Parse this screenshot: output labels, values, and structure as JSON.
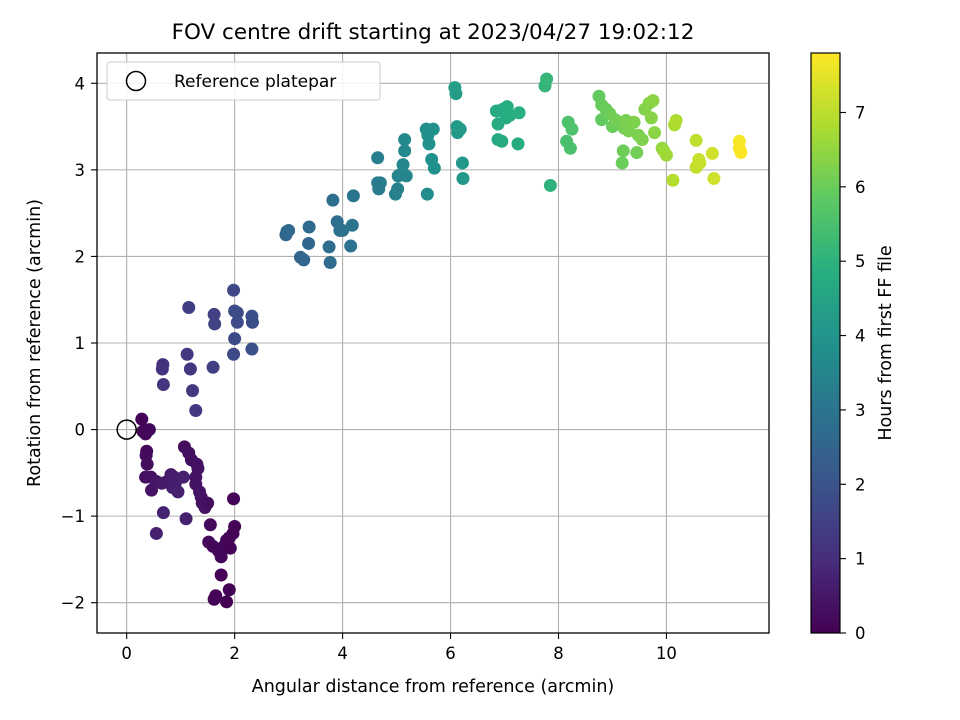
{
  "chart_data": {
    "type": "scatter",
    "title": "FOV centre drift starting at 2023/04/27 19:02:12",
    "xlabel": "Angular distance from reference (arcmin)",
    "ylabel": "Rotation from reference (arcmin)",
    "xlim": [
      -0.55,
      11.9
    ],
    "ylim": [
      -2.35,
      4.35
    ],
    "xticks": [
      0,
      2,
      4,
      6,
      8,
      10
    ],
    "yticks": [
      -2,
      -1,
      0,
      1,
      2,
      3,
      4
    ],
    "grid": true,
    "legend": {
      "position": "top-left",
      "label": "Reference platepar"
    },
    "reference_point": {
      "x": 0,
      "y": 0
    },
    "colorbar": {
      "label": "Hours from first FF file",
      "colormap": "viridis",
      "range": [
        0,
        7.8
      ],
      "ticks": [
        0,
        1,
        2,
        3,
        4,
        5,
        6,
        7
      ]
    },
    "points": [
      {
        "x": 0.28,
        "y": 0.12,
        "c": 0.05
      },
      {
        "x": 0.3,
        "y": -0.02,
        "c": 0.08
      },
      {
        "x": 0.42,
        "y": 0.0,
        "c": 0.1
      },
      {
        "x": 0.35,
        "y": -0.05,
        "c": 0.12
      },
      {
        "x": 0.37,
        "y": -0.25,
        "c": 0.15
      },
      {
        "x": 0.36,
        "y": -0.3,
        "c": 0.2
      },
      {
        "x": 0.38,
        "y": -0.4,
        "c": 0.25
      },
      {
        "x": 0.35,
        "y": -0.55,
        "c": 0.3
      },
      {
        "x": 0.45,
        "y": -0.55,
        "c": 0.35
      },
      {
        "x": 0.46,
        "y": -0.7,
        "c": 0.4
      },
      {
        "x": 0.55,
        "y": -0.6,
        "c": 0.45
      },
      {
        "x": 0.65,
        "y": -0.62,
        "c": 0.5
      },
      {
        "x": 0.75,
        "y": -0.6,
        "c": 0.5
      },
      {
        "x": 0.82,
        "y": -0.52,
        "c": 0.55
      },
      {
        "x": 0.88,
        "y": -0.55,
        "c": 0.6
      },
      {
        "x": 0.9,
        "y": -0.62,
        "c": 0.6
      },
      {
        "x": 0.85,
        "y": -0.67,
        "c": 0.65
      },
      {
        "x": 0.95,
        "y": -0.72,
        "c": 0.7
      },
      {
        "x": 1.05,
        "y": -0.55,
        "c": 0.7
      },
      {
        "x": 1.07,
        "y": -0.2,
        "c": 0.25
      },
      {
        "x": 1.15,
        "y": -0.27,
        "c": 0.3
      },
      {
        "x": 1.2,
        "y": -0.35,
        "c": 0.3
      },
      {
        "x": 1.3,
        "y": -0.4,
        "c": 0.35
      },
      {
        "x": 1.32,
        "y": -0.45,
        "c": 0.35
      },
      {
        "x": 1.28,
        "y": -0.55,
        "c": 0.4
      },
      {
        "x": 1.28,
        "y": -0.63,
        "c": 0.4
      },
      {
        "x": 1.35,
        "y": -0.72,
        "c": 0.4
      },
      {
        "x": 1.38,
        "y": -0.78,
        "c": 0.4
      },
      {
        "x": 1.4,
        "y": -0.85,
        "c": 0.35
      },
      {
        "x": 1.45,
        "y": -0.9,
        "c": 0.35
      },
      {
        "x": 1.5,
        "y": -0.85,
        "c": 0.3
      },
      {
        "x": 1.1,
        "y": -1.03,
        "c": 0.7
      },
      {
        "x": 0.68,
        "y": -0.96,
        "c": 0.75
      },
      {
        "x": 0.55,
        "y": -1.2,
        "c": 0.7
      },
      {
        "x": 1.55,
        "y": -1.1,
        "c": 0.2
      },
      {
        "x": 1.52,
        "y": -1.3,
        "c": 0.2
      },
      {
        "x": 1.6,
        "y": -1.35,
        "c": 0.15
      },
      {
        "x": 1.7,
        "y": -1.4,
        "c": 0.15
      },
      {
        "x": 1.75,
        "y": -1.47,
        "c": 0.1
      },
      {
        "x": 1.8,
        "y": -1.35,
        "c": 0.1
      },
      {
        "x": 1.85,
        "y": -1.28,
        "c": 0.1
      },
      {
        "x": 1.9,
        "y": -1.25,
        "c": 0.1
      },
      {
        "x": 1.92,
        "y": -1.37,
        "c": 0.08
      },
      {
        "x": 1.97,
        "y": -1.2,
        "c": 0.08
      },
      {
        "x": 2.0,
        "y": -1.12,
        "c": 0.08
      },
      {
        "x": 1.98,
        "y": -0.8,
        "c": 0.05
      },
      {
        "x": 1.75,
        "y": -1.68,
        "c": 0.05
      },
      {
        "x": 1.65,
        "y": -1.92,
        "c": 0.05
      },
      {
        "x": 1.62,
        "y": -1.96,
        "c": 0.05
      },
      {
        "x": 1.85,
        "y": -1.99,
        "c": 0.03
      },
      {
        "x": 1.9,
        "y": -1.85,
        "c": 0.03
      },
      {
        "x": 0.67,
        "y": 0.75,
        "c": 1.1
      },
      {
        "x": 0.66,
        "y": 0.7,
        "c": 1.1
      },
      {
        "x": 0.68,
        "y": 0.52,
        "c": 1.15
      },
      {
        "x": 1.12,
        "y": 0.87,
        "c": 1.2
      },
      {
        "x": 1.18,
        "y": 0.7,
        "c": 1.25
      },
      {
        "x": 1.22,
        "y": 0.45,
        "c": 1.3
      },
      {
        "x": 1.28,
        "y": 0.22,
        "c": 1.3
      },
      {
        "x": 1.15,
        "y": 1.41,
        "c": 1.45
      },
      {
        "x": 1.62,
        "y": 1.33,
        "c": 1.5
      },
      {
        "x": 1.63,
        "y": 1.22,
        "c": 1.55
      },
      {
        "x": 1.6,
        "y": 0.72,
        "c": 1.5
      },
      {
        "x": 1.98,
        "y": 1.61,
        "c": 1.65
      },
      {
        "x": 2.0,
        "y": 1.37,
        "c": 1.7
      },
      {
        "x": 2.05,
        "y": 1.35,
        "c": 1.75
      },
      {
        "x": 2.05,
        "y": 1.24,
        "c": 1.8
      },
      {
        "x": 2.0,
        "y": 1.05,
        "c": 1.75
      },
      {
        "x": 1.98,
        "y": 0.87,
        "c": 1.7
      },
      {
        "x": 2.32,
        "y": 1.31,
        "c": 1.85
      },
      {
        "x": 2.33,
        "y": 1.24,
        "c": 1.85
      },
      {
        "x": 2.32,
        "y": 0.93,
        "c": 1.9
      },
      {
        "x": 2.95,
        "y": 2.25,
        "c": 2.6
      },
      {
        "x": 2.97,
        "y": 2.29,
        "c": 2.6
      },
      {
        "x": 3.0,
        "y": 2.3,
        "c": 2.65
      },
      {
        "x": 3.22,
        "y": 1.99,
        "c": 2.5
      },
      {
        "x": 3.28,
        "y": 1.96,
        "c": 2.55
      },
      {
        "x": 3.37,
        "y": 2.15,
        "c": 2.6
      },
      {
        "x": 3.38,
        "y": 2.34,
        "c": 2.7
      },
      {
        "x": 3.75,
        "y": 2.11,
        "c": 2.75
      },
      {
        "x": 3.77,
        "y": 1.93,
        "c": 2.75
      },
      {
        "x": 3.82,
        "y": 2.65,
        "c": 2.85
      },
      {
        "x": 3.9,
        "y": 2.4,
        "c": 2.8
      },
      {
        "x": 3.95,
        "y": 2.3,
        "c": 2.85
      },
      {
        "x": 4.0,
        "y": 2.3,
        "c": 2.9
      },
      {
        "x": 4.15,
        "y": 2.12,
        "c": 2.9
      },
      {
        "x": 4.18,
        "y": 2.36,
        "c": 2.95
      },
      {
        "x": 4.2,
        "y": 2.7,
        "c": 3.0
      },
      {
        "x": 4.65,
        "y": 3.14,
        "c": 3.3
      },
      {
        "x": 4.65,
        "y": 2.85,
        "c": 3.2
      },
      {
        "x": 4.67,
        "y": 2.78,
        "c": 3.2
      },
      {
        "x": 4.7,
        "y": 2.85,
        "c": 3.25
      },
      {
        "x": 4.98,
        "y": 2.72,
        "c": 3.35
      },
      {
        "x": 5.02,
        "y": 2.78,
        "c": 3.4
      },
      {
        "x": 5.03,
        "y": 2.93,
        "c": 3.45
      },
      {
        "x": 5.08,
        "y": 2.95,
        "c": 3.5
      },
      {
        "x": 5.12,
        "y": 3.06,
        "c": 3.55
      },
      {
        "x": 5.15,
        "y": 3.22,
        "c": 3.6
      },
      {
        "x": 5.15,
        "y": 3.35,
        "c": 3.65
      },
      {
        "x": 5.18,
        "y": 2.93,
        "c": 3.5
      },
      {
        "x": 5.55,
        "y": 3.47,
        "c": 3.8
      },
      {
        "x": 5.58,
        "y": 3.4,
        "c": 3.85
      },
      {
        "x": 5.6,
        "y": 3.3,
        "c": 3.9
      },
      {
        "x": 5.57,
        "y": 2.72,
        "c": 3.75
      },
      {
        "x": 5.65,
        "y": 3.12,
        "c": 3.9
      },
      {
        "x": 5.68,
        "y": 3.47,
        "c": 3.95
      },
      {
        "x": 5.7,
        "y": 3.02,
        "c": 3.95
      },
      {
        "x": 6.08,
        "y": 3.95,
        "c": 4.3
      },
      {
        "x": 6.1,
        "y": 3.88,
        "c": 4.3
      },
      {
        "x": 6.12,
        "y": 3.5,
        "c": 4.2
      },
      {
        "x": 6.13,
        "y": 3.43,
        "c": 4.2
      },
      {
        "x": 6.18,
        "y": 3.47,
        "c": 4.25
      },
      {
        "x": 6.22,
        "y": 3.08,
        "c": 4.1
      },
      {
        "x": 6.23,
        "y": 2.9,
        "c": 4.1
      },
      {
        "x": 6.85,
        "y": 3.68,
        "c": 4.7
      },
      {
        "x": 6.88,
        "y": 3.53,
        "c": 4.7
      },
      {
        "x": 6.88,
        "y": 3.35,
        "c": 4.65
      },
      {
        "x": 6.95,
        "y": 3.33,
        "c": 4.7
      },
      {
        "x": 6.97,
        "y": 3.7,
        "c": 4.75
      },
      {
        "x": 7.03,
        "y": 3.6,
        "c": 4.8
      },
      {
        "x": 7.05,
        "y": 3.73,
        "c": 4.8
      },
      {
        "x": 7.1,
        "y": 3.63,
        "c": 4.85
      },
      {
        "x": 7.25,
        "y": 3.3,
        "c": 4.8
      },
      {
        "x": 7.27,
        "y": 3.66,
        "c": 4.9
      },
      {
        "x": 7.75,
        "y": 3.97,
        "c": 5.1
      },
      {
        "x": 7.78,
        "y": 4.05,
        "c": 5.15
      },
      {
        "x": 7.85,
        "y": 2.82,
        "c": 5.0
      },
      {
        "x": 8.15,
        "y": 3.33,
        "c": 5.5
      },
      {
        "x": 8.18,
        "y": 3.55,
        "c": 5.55
      },
      {
        "x": 8.22,
        "y": 3.25,
        "c": 5.5
      },
      {
        "x": 8.25,
        "y": 3.47,
        "c": 5.55
      },
      {
        "x": 8.75,
        "y": 3.85,
        "c": 5.9
      },
      {
        "x": 8.8,
        "y": 3.75,
        "c": 5.95
      },
      {
        "x": 8.8,
        "y": 3.58,
        "c": 5.9
      },
      {
        "x": 8.88,
        "y": 3.7,
        "c": 6.0
      },
      {
        "x": 8.95,
        "y": 3.65,
        "c": 6.05
      },
      {
        "x": 9.0,
        "y": 3.5,
        "c": 6.0
      },
      {
        "x": 9.05,
        "y": 3.58,
        "c": 6.1
      },
      {
        "x": 9.18,
        "y": 3.08,
        "c": 6.0
      },
      {
        "x": 9.2,
        "y": 3.22,
        "c": 6.05
      },
      {
        "x": 9.22,
        "y": 3.48,
        "c": 6.15
      },
      {
        "x": 9.25,
        "y": 3.57,
        "c": 6.2
      },
      {
        "x": 9.3,
        "y": 3.45,
        "c": 6.2
      },
      {
        "x": 9.4,
        "y": 3.55,
        "c": 6.25
      },
      {
        "x": 9.45,
        "y": 3.2,
        "c": 6.1
      },
      {
        "x": 9.48,
        "y": 3.4,
        "c": 6.2
      },
      {
        "x": 9.55,
        "y": 3.35,
        "c": 6.25
      },
      {
        "x": 9.6,
        "y": 3.7,
        "c": 6.3
      },
      {
        "x": 9.68,
        "y": 3.77,
        "c": 6.35
      },
      {
        "x": 9.72,
        "y": 3.6,
        "c": 6.35
      },
      {
        "x": 9.78,
        "y": 3.43,
        "c": 6.4
      },
      {
        "x": 9.75,
        "y": 3.8,
        "c": 6.4
      },
      {
        "x": 9.92,
        "y": 3.25,
        "c": 6.5
      },
      {
        "x": 9.95,
        "y": 3.22,
        "c": 6.6
      },
      {
        "x": 10.0,
        "y": 3.17,
        "c": 6.65
      },
      {
        "x": 10.15,
        "y": 3.52,
        "c": 6.8
      },
      {
        "x": 10.18,
        "y": 3.57,
        "c": 6.85
      },
      {
        "x": 10.12,
        "y": 2.88,
        "c": 6.9
      },
      {
        "x": 10.55,
        "y": 3.34,
        "c": 7.05
      },
      {
        "x": 10.55,
        "y": 3.03,
        "c": 7.1
      },
      {
        "x": 10.6,
        "y": 3.12,
        "c": 7.15
      },
      {
        "x": 10.62,
        "y": 3.08,
        "c": 7.15
      },
      {
        "x": 10.85,
        "y": 3.19,
        "c": 7.25
      },
      {
        "x": 10.88,
        "y": 2.9,
        "c": 7.25
      },
      {
        "x": 11.35,
        "y": 3.33,
        "c": 7.7
      },
      {
        "x": 11.35,
        "y": 3.25,
        "c": 7.75
      },
      {
        "x": 11.38,
        "y": 3.2,
        "c": 7.8
      }
    ]
  }
}
